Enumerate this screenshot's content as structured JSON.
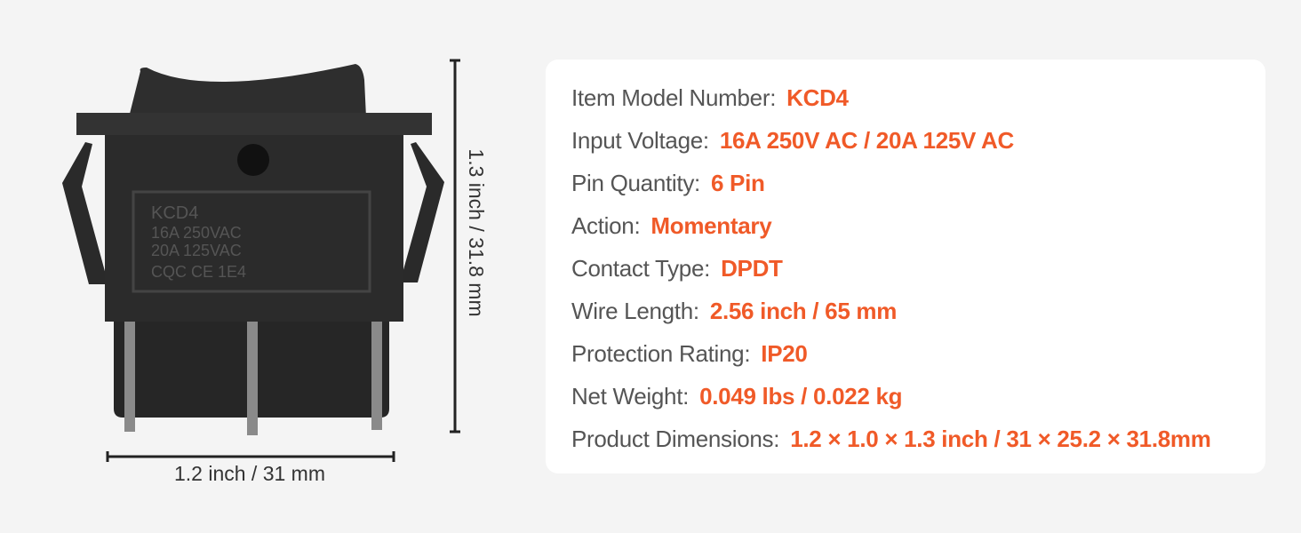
{
  "colors": {
    "background": "#f4f4f4",
    "card": "#ffffff",
    "label": "#555555",
    "value": "#f05a28",
    "switch_body": "#2b2b2b"
  },
  "product": {
    "markings": {
      "model": "KCD4",
      "rating1": "16A 250VAC",
      "rating2": "20A 125VAC",
      "certs": "CQC CE 1E4"
    },
    "height_dimension": "1.3 inch / 31.8 mm",
    "width_dimension": "1.2 inch / 31 mm"
  },
  "specs": [
    {
      "label": "Item Model Number:",
      "value": "KCD4"
    },
    {
      "label": "Input Voltage:",
      "value": "16A 250V AC / 20A 125V AC"
    },
    {
      "label": "Pin Quantity:",
      "value": "6 Pin"
    },
    {
      "label": "Action:",
      "value": "Momentary"
    },
    {
      "label": "Contact Type:",
      "value": "DPDT"
    },
    {
      "label": "Wire Length:",
      "value": "2.56 inch / 65 mm"
    },
    {
      "label": "Protection Rating:",
      "value": "IP20"
    },
    {
      "label": "Net Weight:",
      "value": "0.049 lbs / 0.022 kg"
    },
    {
      "label": "Product Dimensions:",
      "value": "1.2 × 1.0 × 1.3 inch / 31 × 25.2 × 31.8mm"
    }
  ]
}
